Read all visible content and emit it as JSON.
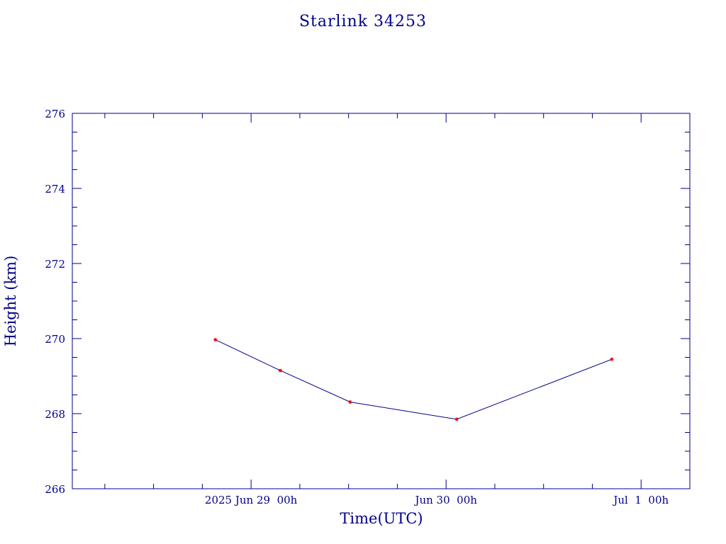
{
  "chart_data": {
    "type": "line",
    "title": "Starlink 34253",
    "xlabel": "Time(UTC)",
    "ylabel": "Height (km)",
    "x_range": [
      "2025-06-28T02:00",
      "2025-07-01T06:00"
    ],
    "ylim": [
      266,
      276
    ],
    "y_ticks": [
      266,
      268,
      270,
      272,
      274,
      276
    ],
    "x_ticks": [
      {
        "t": "2025-06-29T00:00",
        "label": "2025 Jun 29  00h"
      },
      {
        "t": "2025-06-30T00:00",
        "label": "Jun 30  00h"
      },
      {
        "t": "2025-07-01T00:00",
        "label": "Jul  1  00h"
      }
    ],
    "grid": false,
    "series": [
      {
        "x": [
          "2025-06-28T19:36",
          "2025-06-29T03:36",
          "2025-06-29T12:12",
          "2025-06-30T01:18",
          "2025-06-30T20:24"
        ],
        "y": [
          269.97,
          269.15,
          268.31,
          267.85,
          269.45
        ]
      }
    ],
    "colors": {
      "axes": "#00008b",
      "line": "#00008b",
      "marker": "#ff0000"
    }
  }
}
